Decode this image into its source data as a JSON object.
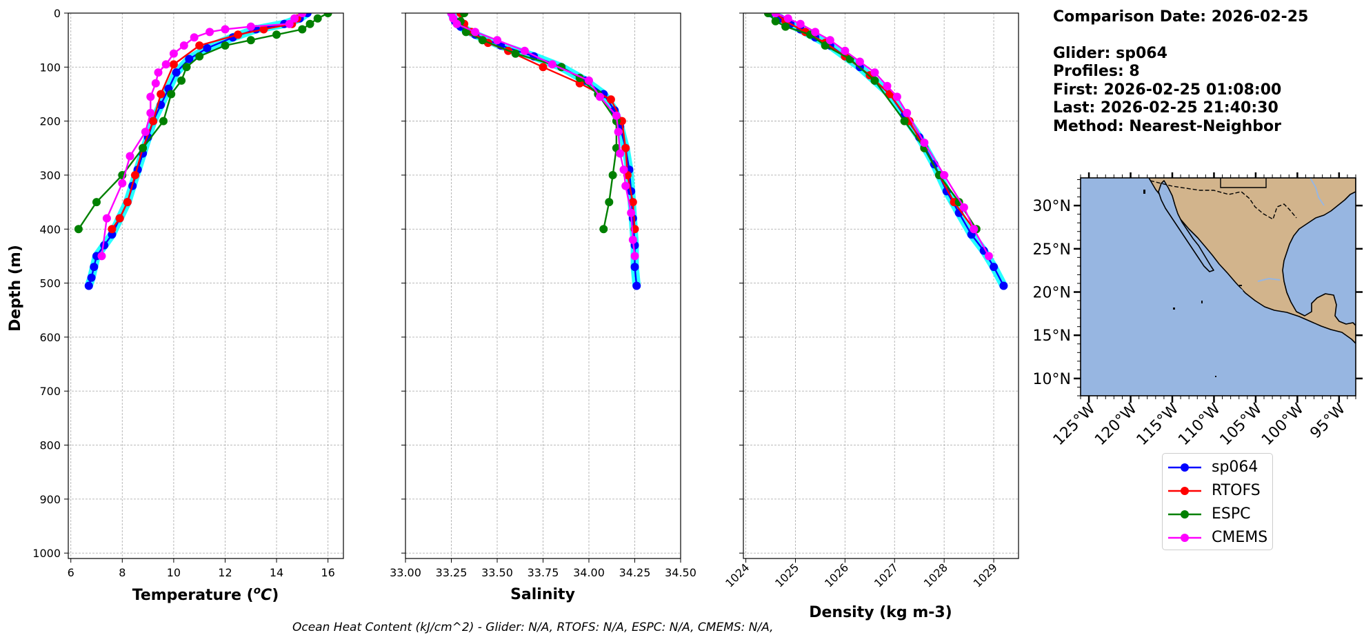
{
  "info": {
    "comparison_date": "Comparison Date: 2026-02-25",
    "glider": "Glider: sp064",
    "profiles": "Profiles: 8",
    "first": "First: 2026-02-25 01:08:00",
    "last": "Last: 2026-02-25 21:40:30",
    "method": "Method: Nearest-Neighbor"
  },
  "footer": "Ocean Heat Content (kJ/cm^2) - Glider: N/A,  RTOFS: N/A,  ESPC: N/A,  CMEMS: N/A,",
  "legend": [
    {
      "label": "sp064",
      "color": "#0000ff"
    },
    {
      "label": "RTOFS",
      "color": "#ff0000"
    },
    {
      "label": "ESPC",
      "color": "#008000"
    },
    {
      "label": "CMEMS",
      "color": "#ff00ff"
    }
  ],
  "map": {
    "land_color": "#d2b48c",
    "ocean_color": "#97b6e1",
    "lat_ticks": [
      "10°N",
      "15°N",
      "20°N",
      "25°N",
      "30°N"
    ],
    "lat_values": [
      10,
      15,
      20,
      25,
      30
    ],
    "lon_ticks": [
      "125°W",
      "120°W",
      "115°W",
      "110°W",
      "105°W",
      "100°W",
      "95°W"
    ],
    "lon_values": [
      -125,
      -120,
      -115,
      -110,
      -105,
      -100,
      -95
    ],
    "lon_range": [
      -126,
      -93
    ],
    "lat_range": [
      8,
      33.2
    ]
  },
  "chart_data": [
    {
      "type": "line",
      "xlabel": "Temperature (°C)",
      "ylabel": "Depth (m)",
      "xlim": [
        5.9,
        16.6
      ],
      "ylim": [
        1010,
        0
      ],
      "xticks": [
        6,
        8,
        10,
        12,
        14,
        16
      ],
      "yticks": [
        0,
        100,
        200,
        300,
        400,
        500,
        600,
        700,
        800,
        900,
        1000
      ],
      "series": [
        {
          "name": "sp064",
          "color": "#0000ff",
          "points": [
            [
              15.2,
              0
            ],
            [
              14.9,
              10
            ],
            [
              14.3,
              20
            ],
            [
              13.2,
              30
            ],
            [
              12.3,
              45
            ],
            [
              11.3,
              65
            ],
            [
              10.6,
              85
            ],
            [
              10.1,
              110
            ],
            [
              9.8,
              140
            ],
            [
              9.5,
              170
            ],
            [
              9.2,
              200
            ],
            [
              9.0,
              230
            ],
            [
              8.8,
              260
            ],
            [
              8.6,
              290
            ],
            [
              8.4,
              320
            ],
            [
              8.2,
              350
            ],
            [
              7.9,
              380
            ],
            [
              7.6,
              410
            ],
            [
              7.3,
              430
            ],
            [
              7.0,
              450
            ],
            [
              6.9,
              470
            ],
            [
              6.8,
              490
            ],
            [
              6.7,
              505
            ]
          ]
        },
        {
          "name": "RTOFS",
          "color": "#ff0000",
          "points": [
            [
              15.0,
              0
            ],
            [
              14.8,
              10
            ],
            [
              14.6,
              20
            ],
            [
              13.5,
              30
            ],
            [
              12.5,
              40
            ],
            [
              11.0,
              60
            ],
            [
              10.0,
              95
            ],
            [
              9.5,
              150
            ],
            [
              9.2,
              200
            ],
            [
              8.8,
              250
            ],
            [
              8.5,
              300
            ],
            [
              8.2,
              350
            ],
            [
              7.9,
              380
            ],
            [
              7.6,
              400
            ]
          ]
        },
        {
          "name": "ESPC",
          "color": "#008000",
          "points": [
            [
              16.0,
              0
            ],
            [
              15.6,
              10
            ],
            [
              15.3,
              20
            ],
            [
              15.0,
              30
            ],
            [
              14.0,
              40
            ],
            [
              13.0,
              50
            ],
            [
              12.0,
              60
            ],
            [
              11.0,
              80
            ],
            [
              10.5,
              100
            ],
            [
              10.3,
              125
            ],
            [
              9.9,
              150
            ],
            [
              9.6,
              200
            ],
            [
              8.8,
              250
            ],
            [
              8.0,
              300
            ],
            [
              7.0,
              350
            ],
            [
              6.3,
              400
            ]
          ]
        },
        {
          "name": "CMEMS",
          "color": "#ff00ff",
          "points": [
            [
              15.0,
              0
            ],
            [
              14.7,
              10
            ],
            [
              14.5,
              20
            ],
            [
              13.0,
              25
            ],
            [
              12.0,
              30
            ],
            [
              11.4,
              35
            ],
            [
              10.8,
              45
            ],
            [
              10.4,
              60
            ],
            [
              10.0,
              75
            ],
            [
              9.7,
              95
            ],
            [
              9.4,
              110
            ],
            [
              9.3,
              130
            ],
            [
              9.1,
              155
            ],
            [
              9.1,
              185
            ],
            [
              8.9,
              220
            ],
            [
              8.3,
              265
            ],
            [
              8.0,
              315
            ],
            [
              7.4,
              380
            ],
            [
              7.2,
              450
            ]
          ]
        }
      ]
    },
    {
      "type": "line",
      "xlabel": "Salinity",
      "xlim": [
        33.0,
        34.5
      ],
      "ylim": [
        1010,
        0
      ],
      "xticks": [
        33.0,
        33.25,
        33.5,
        33.75,
        34.0,
        34.25,
        34.5
      ],
      "xticklabels": [
        "33.00",
        "33.25",
        "33.50",
        "33.75",
        "34.00",
        "34.25",
        "34.50"
      ],
      "series": [
        {
          "name": "sp064",
          "color": "#0000ff",
          "points": [
            [
              33.25,
              0
            ],
            [
              33.27,
              15
            ],
            [
              33.3,
              25
            ],
            [
              33.38,
              40
            ],
            [
              33.52,
              60
            ],
            [
              33.7,
              80
            ],
            [
              33.85,
              100
            ],
            [
              33.98,
              125
            ],
            [
              34.08,
              150
            ],
            [
              34.14,
              180
            ],
            [
              34.17,
              210
            ],
            [
              34.2,
              250
            ],
            [
              34.22,
              290
            ],
            [
              34.23,
              330
            ],
            [
              34.24,
              380
            ],
            [
              34.25,
              430
            ],
            [
              34.25,
              470
            ],
            [
              34.26,
              505
            ]
          ]
        },
        {
          "name": "RTOFS",
          "color": "#ff0000",
          "points": [
            [
              33.3,
              0
            ],
            [
              33.32,
              20
            ],
            [
              33.36,
              35
            ],
            [
              33.45,
              55
            ],
            [
              33.56,
              70
            ],
            [
              33.75,
              100
            ],
            [
              33.95,
              130
            ],
            [
              34.12,
              160
            ],
            [
              34.18,
              200
            ],
            [
              34.2,
              250
            ],
            [
              34.21,
              300
            ],
            [
              34.24,
              350
            ],
            [
              34.25,
              400
            ]
          ]
        },
        {
          "name": "ESPC",
          "color": "#008000",
          "points": [
            [
              33.32,
              0
            ],
            [
              33.3,
              15
            ],
            [
              33.33,
              35
            ],
            [
              33.42,
              50
            ],
            [
              33.6,
              75
            ],
            [
              33.85,
              100
            ],
            [
              33.95,
              120
            ],
            [
              34.05,
              150
            ],
            [
              34.15,
              200
            ],
            [
              34.15,
              250
            ],
            [
              34.13,
              300
            ],
            [
              34.11,
              350
            ],
            [
              34.08,
              400
            ]
          ]
        },
        {
          "name": "CMEMS",
          "color": "#ff00ff",
          "points": [
            [
              33.25,
              0
            ],
            [
              33.26,
              10
            ],
            [
              33.28,
              20
            ],
            [
              33.38,
              35
            ],
            [
              33.5,
              50
            ],
            [
              33.65,
              70
            ],
            [
              33.8,
              95
            ],
            [
              34.0,
              125
            ],
            [
              34.06,
              155
            ],
            [
              34.15,
              190
            ],
            [
              34.16,
              220
            ],
            [
              34.17,
              260
            ],
            [
              34.19,
              290
            ],
            [
              34.2,
              320
            ],
            [
              34.23,
              370
            ],
            [
              34.24,
              420
            ],
            [
              34.25,
              450
            ]
          ]
        }
      ]
    },
    {
      "type": "line",
      "xlabel": "Density (kg m-3)",
      "xlim": [
        1023.95,
        1029.5
      ],
      "ylim": [
        1010,
        0
      ],
      "xticks": [
        1024,
        1025,
        1026,
        1027,
        1028,
        1029
      ],
      "series": [
        {
          "name": "sp064",
          "color": "#0000ff",
          "points": [
            [
              1024.5,
              0
            ],
            [
              1024.7,
              10
            ],
            [
              1024.9,
              20
            ],
            [
              1025.1,
              30
            ],
            [
              1025.4,
              45
            ],
            [
              1025.7,
              60
            ],
            [
              1026.0,
              80
            ],
            [
              1026.3,
              100
            ],
            [
              1026.6,
              125
            ],
            [
              1026.9,
              150
            ],
            [
              1027.2,
              190
            ],
            [
              1027.5,
              230
            ],
            [
              1027.8,
              280
            ],
            [
              1028.05,
              330
            ],
            [
              1028.3,
              370
            ],
            [
              1028.55,
              410
            ],
            [
              1028.8,
              440
            ],
            [
              1029.0,
              470
            ],
            [
              1029.2,
              505
            ]
          ]
        },
        {
          "name": "RTOFS",
          "color": "#ff0000",
          "points": [
            [
              1024.6,
              0
            ],
            [
              1024.8,
              15
            ],
            [
              1025.2,
              35
            ],
            [
              1025.6,
              55
            ],
            [
              1026.0,
              80
            ],
            [
              1026.5,
              115
            ],
            [
              1026.9,
              150
            ],
            [
              1027.3,
              200
            ],
            [
              1027.6,
              250
            ],
            [
              1027.9,
              300
            ],
            [
              1028.2,
              350
            ],
            [
              1028.6,
              400
            ]
          ]
        },
        {
          "name": "ESPC",
          "color": "#008000",
          "points": [
            [
              1024.45,
              0
            ],
            [
              1024.6,
              15
            ],
            [
              1024.8,
              25
            ],
            [
              1025.3,
              40
            ],
            [
              1025.6,
              60
            ],
            [
              1026.1,
              85
            ],
            [
              1026.6,
              125
            ],
            [
              1027.2,
              200
            ],
            [
              1027.6,
              250
            ],
            [
              1027.9,
              300
            ],
            [
              1028.3,
              350
            ],
            [
              1028.65,
              400
            ]
          ]
        },
        {
          "name": "CMEMS",
          "color": "#ff00ff",
          "points": [
            [
              1024.6,
              0
            ],
            [
              1024.85,
              10
            ],
            [
              1025.1,
              20
            ],
            [
              1025.4,
              35
            ],
            [
              1025.7,
              50
            ],
            [
              1026.0,
              70
            ],
            [
              1026.3,
              90
            ],
            [
              1026.6,
              110
            ],
            [
              1026.85,
              135
            ],
            [
              1027.05,
              155
            ],
            [
              1027.25,
              185
            ],
            [
              1027.6,
              240
            ],
            [
              1028.0,
              300
            ],
            [
              1028.4,
              360
            ],
            [
              1028.6,
              400
            ],
            [
              1028.9,
              450
            ]
          ]
        }
      ]
    }
  ]
}
